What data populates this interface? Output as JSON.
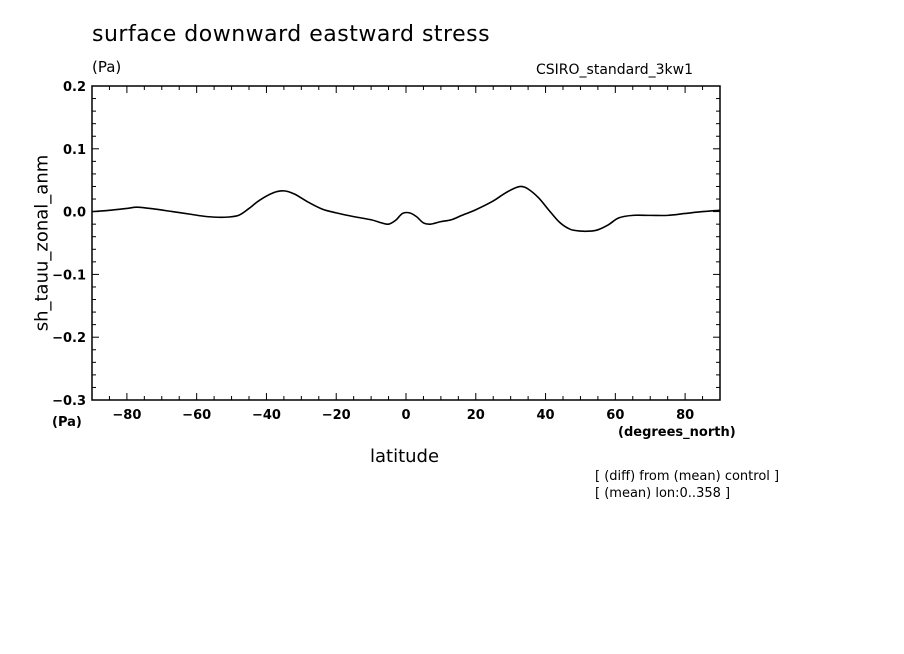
{
  "header": {
    "title": "surface downward eastward stress",
    "units_top": "(Pa)",
    "model": "CSIRO_standard_3kw1"
  },
  "axes": {
    "ylabel": "sh_tauu_zonal_anm",
    "xlabel": "latitude",
    "y_units": "(Pa)",
    "x_units": "(degrees_north)"
  },
  "notes": {
    "line1": "[ (diff) from (mean) control ]",
    "line2": "[ (mean) lon:0..358 ]"
  },
  "chart_data": {
    "type": "line",
    "title": "surface downward eastward stress",
    "xlabel": "latitude",
    "ylabel": "sh_tauu_zonal_anm",
    "xlim": [
      -90,
      90
    ],
    "ylim": [
      -0.3,
      0.2
    ],
    "x_ticks": [
      -80,
      -60,
      -40,
      -20,
      0,
      20,
      40,
      60,
      80
    ],
    "x_tick_labels": [
      "−80",
      "−60",
      "−40",
      "−20",
      "0",
      "20",
      "40",
      "60",
      "80"
    ],
    "y_ticks": [
      -0.3,
      -0.2,
      -0.1,
      0.0,
      0.1,
      0.2
    ],
    "y_tick_labels": [
      "−0.3",
      "−0.2",
      "−0.1",
      "0.0",
      "0.1",
      "0.2"
    ],
    "grid": false,
    "series": [
      {
        "color": "#000000",
        "x": [
          -90,
          -85,
          -80,
          -77,
          -72,
          -67,
          -62,
          -57,
          -52,
          -48,
          -45,
          -42,
          -38,
          -35,
          -32,
          -28,
          -24,
          -20,
          -15,
          -10,
          -7,
          -5,
          -3,
          -1,
          1,
          3,
          5,
          7,
          10,
          13,
          16,
          20,
          25,
          28,
          31,
          33,
          35,
          38,
          41,
          44,
          47,
          50,
          53,
          55,
          58,
          61,
          65,
          70,
          75,
          80,
          85,
          90
        ],
        "y": [
          0.0,
          0.002,
          0.005,
          0.007,
          0.004,
          0.0,
          -0.004,
          -0.008,
          -0.009,
          -0.006,
          0.005,
          0.018,
          0.03,
          0.033,
          0.028,
          0.015,
          0.004,
          -0.002,
          -0.008,
          -0.013,
          -0.018,
          -0.02,
          -0.014,
          -0.003,
          -0.002,
          -0.008,
          -0.018,
          -0.02,
          -0.016,
          -0.013,
          -0.006,
          0.003,
          0.017,
          0.028,
          0.037,
          0.04,
          0.036,
          0.022,
          0.002,
          -0.017,
          -0.028,
          -0.031,
          -0.031,
          -0.029,
          -0.021,
          -0.01,
          -0.006,
          -0.006,
          -0.006,
          -0.003,
          0.0,
          0.002
        ]
      }
    ]
  }
}
